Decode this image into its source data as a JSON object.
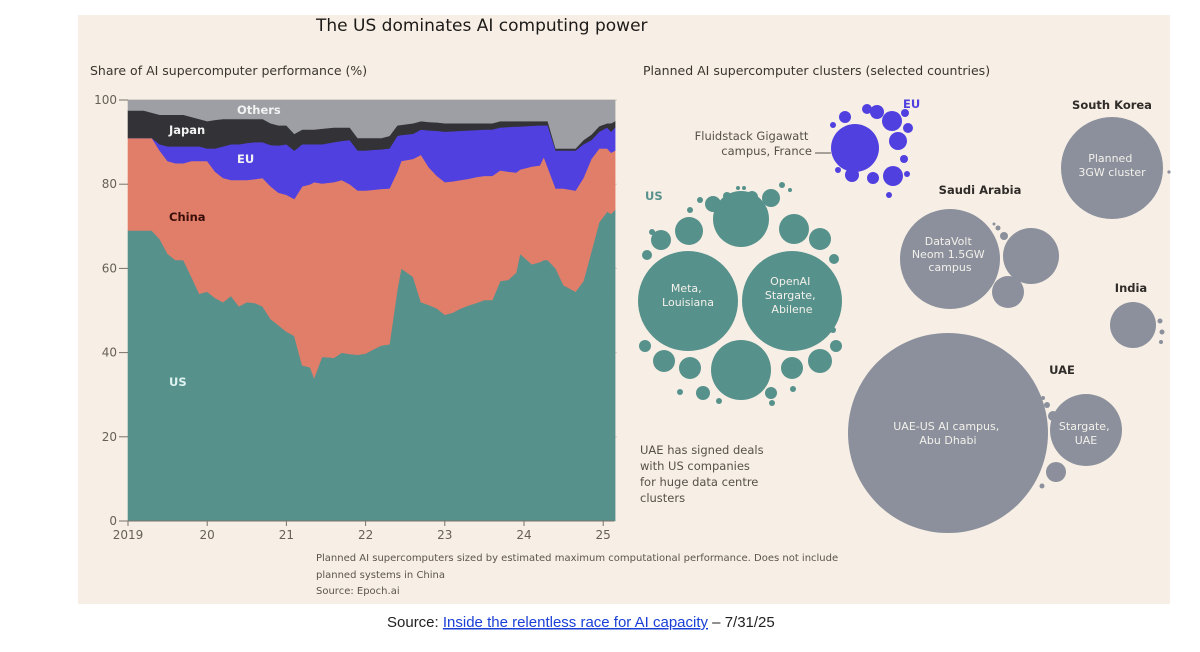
{
  "title": "The US dominates AI computing power",
  "colors": {
    "background": "#f7efe5",
    "US": "#57918c",
    "China": "#e07e6a",
    "EU": "#5140e0",
    "Japan": "#333337",
    "Others": "#9d9fa4",
    "planned_other": "#8b909c"
  },
  "chart_data": [
    {
      "type": "area",
      "stacked": true,
      "title": "Share of AI supercomputer performance (%)",
      "xlabel": "",
      "ylabel": "",
      "ylim": [
        0,
        100
      ],
      "yticks": [
        "0",
        "20",
        "40",
        "60",
        "80",
        "100"
      ],
      "xticks": [
        "2019",
        "20",
        "21",
        "22",
        "23",
        "24",
        "25"
      ],
      "grid": true,
      "x": [
        2019.0,
        2019.1,
        2019.2,
        2019.3,
        2019.4,
        2019.5,
        2019.6,
        2019.7,
        2019.8,
        2019.9,
        2020.0,
        2020.1,
        2020.2,
        2020.3,
        2020.4,
        2020.5,
        2020.6,
        2020.7,
        2020.8,
        2020.9,
        2021.0,
        2021.1,
        2021.2,
        2021.3,
        2021.35,
        2021.45,
        2021.6,
        2021.7,
        2021.8,
        2021.9,
        2022.0,
        2022.1,
        2022.2,
        2022.3,
        2022.4,
        2022.45,
        2022.6,
        2022.7,
        2022.8,
        2022.9,
        2023.0,
        2023.1,
        2023.2,
        2023.3,
        2023.4,
        2023.5,
        2023.6,
        2023.7,
        2023.8,
        2023.9,
        2023.95,
        2024.1,
        2024.2,
        2024.25,
        2024.3,
        2024.4,
        2024.5,
        2024.65,
        2024.75,
        2024.85,
        2024.95,
        2025.05,
        2025.1,
        2025.15
      ],
      "series": [
        {
          "name": "US",
          "values": [
            69,
            69,
            69,
            69,
            67,
            63.5,
            62,
            62,
            58,
            54,
            54.5,
            53,
            52,
            53.5,
            51,
            52,
            51.8,
            51,
            48,
            46.5,
            45,
            44,
            37,
            36.5,
            34,
            39,
            38.8,
            40,
            39.7,
            39.5,
            39.8,
            40.8,
            41.7,
            42,
            55,
            60,
            58,
            52,
            51.3,
            50.5,
            49,
            49.5,
            50.5,
            51.2,
            51.8,
            52.5,
            52.5,
            57,
            57.3,
            59,
            63.5,
            61,
            61.5,
            62,
            62,
            60,
            56,
            54.5,
            57,
            64,
            71,
            73.5,
            73,
            74
          ]
        },
        {
          "name": "China",
          "values": [
            22,
            22,
            22,
            22,
            21,
            22,
            23,
            23,
            27.5,
            31.5,
            31,
            30,
            29.5,
            27.5,
            30,
            29,
            29.4,
            30.5,
            31.5,
            31.5,
            32.5,
            32.5,
            42.5,
            43.5,
            46.5,
            41.2,
            41.7,
            41,
            40.3,
            39,
            38.7,
            37.9,
            37.2,
            37,
            28,
            25.5,
            28,
            35,
            32.7,
            31.5,
            31.5,
            31.2,
            30.5,
            30.1,
            29.9,
            29.5,
            29.5,
            26.3,
            25.7,
            23.8,
            20,
            23.2,
            23,
            24.5,
            22,
            19,
            23,
            24,
            24.5,
            22,
            17.5,
            15,
            14.5,
            14
          ]
        },
        {
          "name": "EU",
          "values": [
            0,
            0,
            0,
            0,
            1.5,
            3.5,
            4,
            4,
            3.5,
            3.5,
            3,
            5.5,
            7.5,
            8.5,
            8.5,
            8.8,
            8.8,
            8.5,
            9.8,
            11.2,
            12,
            11.5,
            10,
            9.5,
            9,
            9.3,
            9.5,
            9.3,
            10.5,
            9.5,
            9.5,
            9.5,
            9.4,
            9.5,
            8.5,
            6.2,
            6,
            6,
            8.8,
            10.7,
            12,
            11.9,
            11.7,
            11.5,
            11.2,
            11,
            11,
            10.2,
            10.6,
            10.9,
            10.2,
            9.7,
            9.5,
            7.5,
            10,
            9,
            9,
            9.5,
            8,
            4.5,
            4,
            5,
            5,
            5.5
          ]
        },
        {
          "name": "Japan",
          "values": [
            6.5,
            6.5,
            6.5,
            6,
            7,
            7.5,
            7.5,
            7.5,
            7,
            6.5,
            6.5,
            6.8,
            6.5,
            6,
            6,
            5.7,
            5.5,
            5.5,
            5.2,
            4.8,
            4.5,
            4,
            3.5,
            3.5,
            3.5,
            3.7,
            3.5,
            3.2,
            3,
            3,
            3,
            2.8,
            2.7,
            3,
            2.5,
            2.4,
            2.5,
            2,
            2,
            2,
            2,
            1.9,
            1.8,
            1.7,
            1.6,
            1.5,
            1.5,
            1.5,
            1.4,
            1.3,
            1.3,
            1.1,
            1,
            1,
            1,
            0.5,
            0.5,
            0.5,
            1,
            1.3,
            1.3,
            1,
            2,
            1.5
          ]
        },
        {
          "name": "Others",
          "values": [
            2.5,
            2.5,
            2.5,
            3,
            3.5,
            3.5,
            3.5,
            3.5,
            4,
            4.5,
            5,
            4.7,
            4.5,
            4.5,
            4.5,
            4.5,
            4.5,
            4.5,
            5.5,
            6,
            6,
            8,
            7,
            7,
            7,
            6.8,
            6.5,
            6.5,
            6.5,
            9,
            9,
            9,
            9,
            8.5,
            6,
            5.9,
            5.5,
            5,
            5.2,
            5.3,
            5.5,
            5.5,
            5.5,
            5.5,
            5.5,
            5.5,
            5.5,
            5,
            5,
            5,
            5,
            5,
            5,
            5,
            5,
            11.5,
            11.5,
            11.5,
            9.5,
            8.2,
            6.2,
            5.5,
            5.5,
            5
          ]
        }
      ]
    },
    {
      "type": "bubble",
      "title": "Planned AI supercomputer clusters (selected countries)",
      "groups": [
        {
          "name": "US",
          "labeled_clusters": [
            [
              "Meta,",
              "Louisiana"
            ],
            [
              "OpenAI",
              "Stargate,",
              "Abilene"
            ]
          ]
        },
        {
          "name": "EU",
          "labeled_clusters": [
            [
              "Fluidstack Gigawatt",
              "campus, France"
            ]
          ]
        },
        {
          "name": "Saudi Arabia",
          "labeled_clusters": [
            [
              "DataVolt",
              "Neom 1.5GW",
              "campus"
            ]
          ]
        },
        {
          "name": "South Korea",
          "labeled_clusters": [
            [
              "Planned",
              "3GW cluster"
            ]
          ]
        },
        {
          "name": "India",
          "labeled_clusters": []
        },
        {
          "name": "UAE",
          "labeled_clusters": [
            [
              "UAE-US AI campus,",
              "Abu Dhabi"
            ],
            [
              "Stargate,",
              "UAE"
            ]
          ]
        }
      ],
      "annotation": [
        "UAE has signed deals",
        "with US companies",
        "for huge data centre",
        "clusters"
      ]
    }
  ],
  "footnote": [
    "Planned AI supercomputers sized by estimated maximum computational performance. Does not include",
    "planned systems in China"
  ],
  "source_inner": "Source: Epoch.ai",
  "source_line": {
    "prefix": "Source: ",
    "link_text": "Inside the relentless race for AI capacity",
    "suffix": " – 7/31/25"
  }
}
